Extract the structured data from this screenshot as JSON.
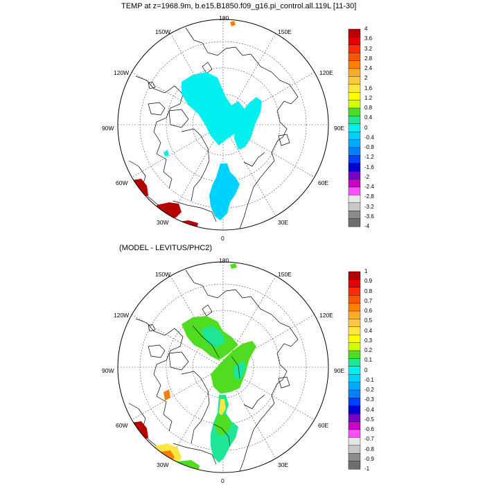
{
  "panels": [
    {
      "title": "TEMP at z=1968.9m, b.e15.B1850.f09_g16.pi_control.all.119L [11-30]",
      "lon_labels": {
        "180": "180",
        "150W": "150W",
        "150E": "150E",
        "120W": "120W",
        "120E": "120E",
        "90W": "90W",
        "90E": "90E",
        "60W": "60W",
        "60E": "60E",
        "30W": "30W",
        "30E": "30E",
        "0": "0"
      },
      "colorbar": {
        "labels": [
          "4",
          "3.6",
          "3.2",
          "2.8",
          "2.4",
          "2",
          "1.6",
          "1.2",
          "0.8",
          "0.4",
          "0",
          "-0.4",
          "-0.8",
          "-1.2",
          "-1.6",
          "-2",
          "-2.4",
          "-2.8",
          "-3.2",
          "-3.6",
          "-4"
        ],
        "colors": [
          "#b40000",
          "#e60000",
          "#ff2a00",
          "#ff5500",
          "#ff8000",
          "#ffaa2a",
          "#ffc840",
          "#ffe640",
          "#ffff00",
          "#d4ff00",
          "#50dc20",
          "#1ee696",
          "#00f0f0",
          "#00d2ff",
          "#00aaff",
          "#0080ff",
          "#0040ff",
          "#0000d2",
          "#7800c8",
          "#c800c8",
          "#ff50ff",
          "#e6e6e6",
          "#c8c8c8",
          "#8c8c8c",
          "#6e6e6e"
        ]
      }
    },
    {
      "title": "(MODEL - LEVITUS/PHC2)",
      "lon_labels": {
        "180": "180",
        "150W": "150W",
        "150E": "150E",
        "120W": "120W",
        "120E": "120E",
        "90W": "90W",
        "90E": "90E",
        "60W": "60W",
        "60E": "60E",
        "30W": "30W",
        "30E": "30E",
        "0": "0"
      },
      "colorbar": {
        "labels": [
          "1",
          "0.9",
          "0.8",
          "0.7",
          "0.6",
          "0.5",
          "0.4",
          "0.3",
          "0.2",
          "0.1",
          "0",
          "-0.1",
          "-0.2",
          "-0.3",
          "-0.4",
          "-0.5",
          "-0.6",
          "-0.7",
          "-0.8",
          "-0.9",
          "-1"
        ],
        "colors": [
          "#b40000",
          "#e60000",
          "#ff2a00",
          "#ff5500",
          "#ff8000",
          "#ffaa2a",
          "#ffc840",
          "#ffe640",
          "#ffff00",
          "#d4ff00",
          "#50dc20",
          "#1ee696",
          "#00f0f0",
          "#00d2ff",
          "#00aaff",
          "#0080ff",
          "#0040ff",
          "#0000d2",
          "#7800c8",
          "#c800c8",
          "#ff50ff",
          "#e6e6e6",
          "#c8c8c8",
          "#8c8c8c",
          "#6e6e6e"
        ]
      }
    }
  ],
  "colors": {
    "top_main": "#00f0f0",
    "top_atlantic": "#00d2ff",
    "top_warm": "#b40000",
    "bot_green": "#50dc20",
    "bot_teal": "#1ee696",
    "bot_warm": "#b40000",
    "bot_orange": "#ff8000",
    "bot_yellow": "#ffe640"
  }
}
